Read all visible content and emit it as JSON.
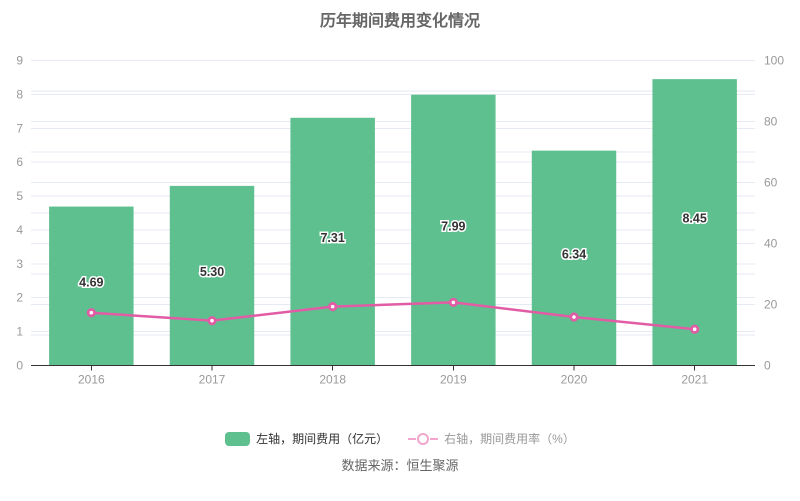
{
  "title": "历年期间费用变化情况",
  "source_text": "数据来源：恒生聚源",
  "legend": {
    "bar_label": "左轴，期间费用（亿元）",
    "line_label": "右轴，期间费用率（%）"
  },
  "colors": {
    "bar": "#5EC08E",
    "line": "#E15CA5",
    "marker_fill": "#FFFFFF",
    "legend_line_icon": "#F2A6CE",
    "grid": "#E5EAF5",
    "axis_line": "#333333",
    "axis_label": "#999999",
    "bar_value_text": "#333333",
    "title_text": "#666666",
    "legend_bar_text": "#333333",
    "legend_line_text": "#999999",
    "source_text_color": "#666666"
  },
  "chart_data": {
    "type": "bar+line",
    "title": "历年期间费用变化情况",
    "categories": [
      "2016",
      "2017",
      "2018",
      "2019",
      "2020",
      "2021"
    ],
    "series": [
      {
        "name": "左轴，期间费用（亿元）",
        "type": "bar",
        "y_axis": "left",
        "values": [
          4.69,
          5.3,
          7.31,
          7.99,
          6.34,
          8.45
        ],
        "value_labels": [
          "4.69",
          "5.30",
          "7.31",
          "7.99",
          "6.34",
          "8.45"
        ]
      },
      {
        "name": "右轴，期间费用率（%）",
        "type": "line",
        "y_axis": "right",
        "values": [
          17.3,
          14.7,
          19.3,
          20.7,
          15.9,
          11.9
        ]
      }
    ],
    "left_axis": {
      "min": 0,
      "max": 9,
      "ticks": [
        0,
        1,
        2,
        3,
        4,
        5,
        6,
        7,
        8,
        9
      ]
    },
    "right_axis": {
      "min": 0,
      "max": 100,
      "ticks": [
        0,
        20,
        40,
        60,
        80,
        100
      ],
      "grid_interval": 10
    },
    "grid": true,
    "legend_position": "bottom"
  }
}
